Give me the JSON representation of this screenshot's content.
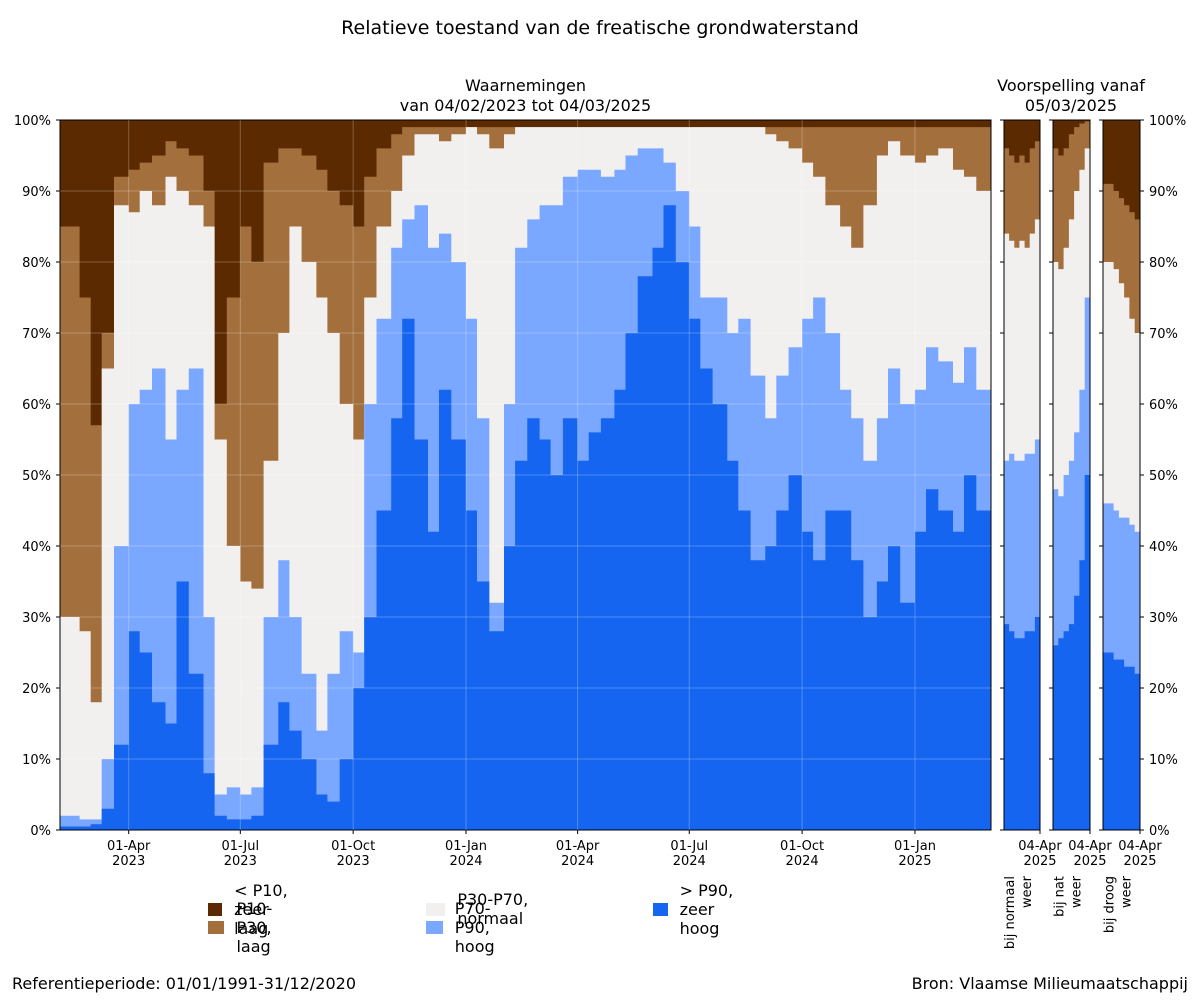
{
  "title": "Relatieve toestand van de freatische grondwaterstand",
  "observations_title_line1": "Waarnemingen",
  "observations_title_line2": "van 04/02/2023 tot 04/03/2025",
  "forecast_title_line1": "Voorspelling vanaf",
  "forecast_title_line2": "05/03/2025",
  "footer_left": "Referentieperiode: 01/01/1991-31/12/2020",
  "footer_right": "Bron: Vlaamse Milieumaatschappij",
  "colors": {
    "zeer_laag": "#5c2a00",
    "laag": "#a36f3c",
    "normaal": "#f2f0ee",
    "hoog": "#7aa7ff",
    "zeer_hoog": "#1565f0"
  },
  "legend": [
    {
      "key": "zeer_laag",
      "label": "< P10, zeer laag"
    },
    {
      "key": "laag",
      "label": "P10-P30, laag"
    },
    {
      "key": "normaal",
      "label": "P30-P70, normaal"
    },
    {
      "key": "hoog",
      "label": "P70-P90, hoog"
    },
    {
      "key": "zeer_hoog",
      "label": "> P90, zeer hoog"
    }
  ],
  "chart_data": [
    {
      "type": "area",
      "stacked": true,
      "title": "Waarnemingen van 04/02/2023 tot 04/03/2025",
      "x_start": "2023-02-04",
      "x_end": "2025-03-04",
      "xticks": [
        {
          "date": "2023-04-01",
          "label": [
            "01-Apr",
            "2023"
          ]
        },
        {
          "date": "2023-07-01",
          "label": [
            "01-Jul",
            "2023"
          ]
        },
        {
          "date": "2023-10-01",
          "label": [
            "01-Oct",
            "2023"
          ]
        },
        {
          "date": "2024-01-01",
          "label": [
            "01-Jan",
            "2024"
          ]
        },
        {
          "date": "2024-04-01",
          "label": [
            "01-Apr",
            "2024"
          ]
        },
        {
          "date": "2024-07-01",
          "label": [
            "01-Jul",
            "2024"
          ]
        },
        {
          "date": "2024-10-01",
          "label": [
            "01-Oct",
            "2024"
          ]
        },
        {
          "date": "2025-01-01",
          "label": [
            "01-Jan",
            "2025"
          ]
        }
      ],
      "yticks": [
        "0%",
        "10%",
        "20%",
        "30%",
        "40%",
        "50%",
        "60%",
        "70%",
        "80%",
        "90%",
        "100%"
      ],
      "ylim": [
        0,
        100
      ],
      "grid": true,
      "series_note": "cumulative boundaries from bottom (percent of stations)",
      "x": [
        "2023-02-04",
        "2023-02-20",
        "2023-03-01",
        "2023-03-10",
        "2023-03-20",
        "2023-04-01",
        "2023-04-10",
        "2023-04-20",
        "2023-05-01",
        "2023-05-10",
        "2023-05-20",
        "2023-06-01",
        "2023-06-10",
        "2023-06-20",
        "2023-07-01",
        "2023-07-10",
        "2023-07-20",
        "2023-08-01",
        "2023-08-10",
        "2023-08-20",
        "2023-09-01",
        "2023-09-10",
        "2023-09-20",
        "2023-10-01",
        "2023-10-10",
        "2023-10-20",
        "2023-11-01",
        "2023-11-10",
        "2023-11-20",
        "2023-12-01",
        "2023-12-10",
        "2023-12-20",
        "2024-01-01",
        "2024-01-10",
        "2024-01-20",
        "2024-02-01",
        "2024-02-10",
        "2024-02-20",
        "2024-03-01",
        "2024-03-10",
        "2024-03-20",
        "2024-04-01",
        "2024-04-10",
        "2024-04-20",
        "2024-05-01",
        "2024-05-10",
        "2024-05-20",
        "2024-06-01",
        "2024-06-10",
        "2024-06-20",
        "2024-07-01",
        "2024-07-10",
        "2024-07-20",
        "2024-08-01",
        "2024-08-10",
        "2024-08-20",
        "2024-09-01",
        "2024-09-10",
        "2024-09-20",
        "2024-10-01",
        "2024-10-10",
        "2024-10-20",
        "2024-11-01",
        "2024-11-10",
        "2024-11-20",
        "2024-12-01",
        "2024-12-10",
        "2024-12-20",
        "2025-01-01",
        "2025-01-10",
        "2025-01-20",
        "2025-02-01",
        "2025-02-10",
        "2025-02-20",
        "2025-03-04"
      ],
      "series": [
        {
          "key": "zeer_hoog",
          "values": [
            0.5,
            0.5,
            0.8,
            3,
            12,
            28,
            25,
            18,
            15,
            35,
            22,
            8,
            2,
            1.5,
            1.5,
            2,
            12,
            18,
            14,
            10,
            5,
            4,
            10,
            20,
            30,
            45,
            58,
            72,
            55,
            42,
            62,
            55,
            45,
            35,
            28,
            40,
            52,
            58,
            55,
            50,
            58,
            52,
            56,
            58,
            62,
            70,
            78,
            82,
            88,
            80,
            72,
            65,
            60,
            52,
            45,
            38,
            40,
            45,
            50,
            42,
            38,
            45,
            45,
            38,
            30,
            35,
            40,
            32,
            42,
            48,
            45,
            42,
            50,
            45,
            30
          ]
        },
        {
          "key": "hoog",
          "values": [
            2,
            1.5,
            1.5,
            10,
            40,
            60,
            62,
            65,
            55,
            62,
            65,
            30,
            5,
            6,
            5,
            6,
            30,
            38,
            30,
            22,
            14,
            22,
            28,
            25,
            60,
            72,
            82,
            86,
            88,
            82,
            84,
            80,
            72,
            58,
            32,
            60,
            82,
            86,
            88,
            88,
            92,
            93,
            93,
            92,
            93,
            95,
            96,
            96,
            94,
            90,
            85,
            75,
            75,
            70,
            72,
            64,
            58,
            64,
            68,
            72,
            75,
            70,
            62,
            58,
            52,
            58,
            65,
            60,
            62,
            68,
            66,
            63,
            68,
            62,
            55
          ]
        },
        {
          "key": "normaal",
          "values": [
            30,
            28,
            18,
            65,
            88,
            87,
            90,
            88,
            92,
            90,
            88,
            85,
            55,
            40,
            35,
            34,
            52,
            70,
            85,
            80,
            75,
            70,
            60,
            55,
            75,
            85,
            90,
            95,
            98,
            98,
            97,
            98,
            99,
            98,
            96,
            98,
            99,
            99,
            99,
            99,
            99,
            99,
            99,
            99,
            99,
            99,
            99,
            99,
            99,
            99,
            99,
            99,
            99,
            99,
            99,
            99,
            98,
            97,
            96,
            94,
            92,
            88,
            85,
            82,
            88,
            95,
            97,
            95,
            94,
            95,
            96,
            93,
            92,
            90,
            85
          ]
        },
        {
          "key": "laag",
          "values": [
            85,
            75,
            57,
            70,
            92,
            93,
            94,
            95,
            97,
            96,
            95,
            90,
            60,
            75,
            85,
            80,
            94,
            96,
            96,
            95,
            93,
            90,
            88,
            85,
            92,
            96,
            98,
            99,
            99,
            99,
            99,
            99,
            99,
            99,
            99,
            99,
            99,
            99,
            99,
            99,
            99,
            99,
            99,
            99,
            99,
            99,
            99,
            99,
            99,
            99,
            99,
            99,
            99,
            99,
            99,
            99,
            99,
            99,
            99,
            99,
            99,
            99,
            99,
            99,
            99,
            99,
            99,
            99,
            99,
            99,
            99,
            99,
            99,
            99,
            99
          ]
        }
      ]
    },
    {
      "type": "area",
      "stacked": true,
      "title": "bij normaal weer",
      "xticks": [
        {
          "label": [
            "04-Apr",
            "2025"
          ]
        }
      ],
      "xlabel": [
        "bij normaal",
        "weer"
      ],
      "series": [
        {
          "key": "zeer_hoog",
          "values": [
            29,
            28,
            27,
            27,
            28,
            28,
            30,
            35
          ]
        },
        {
          "key": "hoog",
          "values": [
            52,
            53,
            52,
            52,
            53,
            53,
            55,
            70
          ]
        },
        {
          "key": "normaal",
          "values": [
            84,
            83,
            82,
            83,
            82,
            84,
            86,
            92
          ]
        },
        {
          "key": "laag",
          "values": [
            96,
            95,
            94,
            95,
            94,
            96,
            97,
            99
          ]
        }
      ]
    },
    {
      "type": "area",
      "stacked": true,
      "title": "bij nat weer",
      "xticks": [
        {
          "label": [
            "04-Apr",
            "2025"
          ]
        }
      ],
      "xlabel": [
        "bij nat",
        "weer"
      ],
      "series": [
        {
          "key": "zeer_hoog",
          "values": [
            26,
            27,
            28,
            29,
            33,
            38,
            50,
            66
          ]
        },
        {
          "key": "hoog",
          "values": [
            48,
            47,
            50,
            52,
            56,
            62,
            75,
            95
          ]
        },
        {
          "key": "normaal",
          "values": [
            80,
            79,
            82,
            86,
            90,
            93,
            96,
            99.5
          ]
        },
        {
          "key": "laag",
          "values": [
            96,
            95,
            96,
            98,
            99,
            99.5,
            99.8,
            100
          ]
        }
      ]
    },
    {
      "type": "area",
      "stacked": true,
      "title": "bij droog weer",
      "xticks": [
        {
          "label": [
            "04-Apr",
            "2025"
          ]
        }
      ],
      "xlabel": [
        "bij droog",
        "weer"
      ],
      "series": [
        {
          "key": "zeer_hoog",
          "values": [
            25,
            25,
            24,
            24,
            23,
            23,
            22,
            21
          ]
        },
        {
          "key": "hoog",
          "values": [
            46,
            46,
            45,
            44,
            44,
            43,
            42,
            40
          ]
        },
        {
          "key": "normaal",
          "values": [
            80,
            80,
            79,
            77,
            75,
            72,
            70,
            65
          ]
        },
        {
          "key": "laag",
          "values": [
            91,
            91,
            90,
            89,
            88,
            87,
            86,
            84
          ]
        }
      ]
    }
  ]
}
